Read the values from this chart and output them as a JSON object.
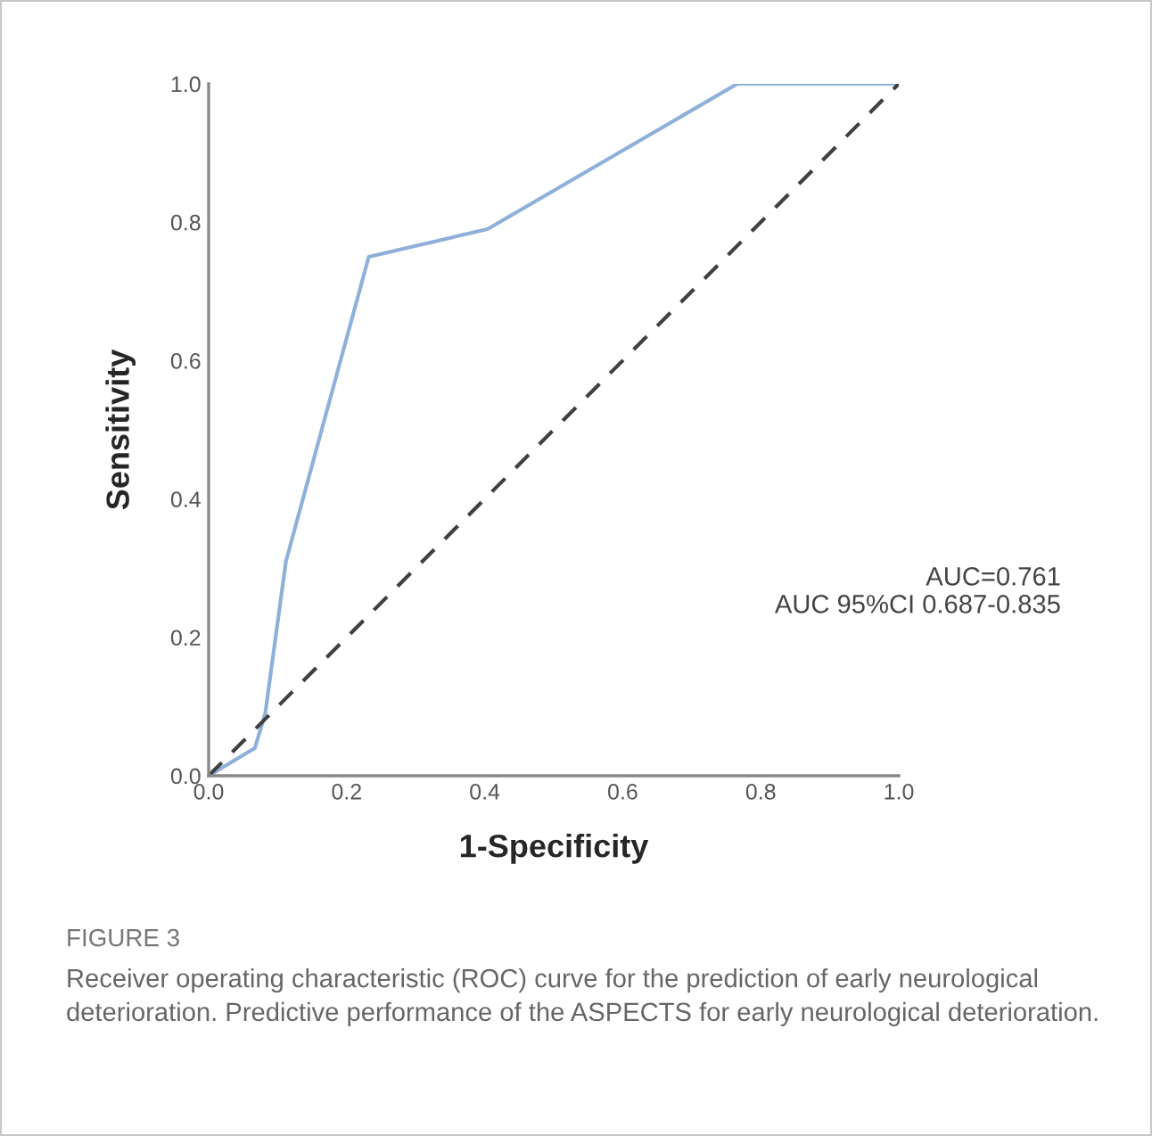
{
  "chart_data": {
    "type": "line",
    "xlabel": "1-Specificity",
    "ylabel": "Sensitivity",
    "series": [
      {
        "x": [
          0,
          0.067,
          0.082,
          0.112,
          0.232,
          0.404,
          0.766,
          1.0
        ],
        "values": [
          0,
          0.04,
          0.09,
          0.31,
          0.75,
          0.79,
          1.0,
          1.0
        ],
        "color": "#8fb0d8",
        "line_style": "solid"
      },
      {
        "x": [
          0,
          1
        ],
        "values": [
          0,
          1
        ],
        "color": "#404040",
        "line_style": "dashed"
      }
    ],
    "xlim": [
      0,
      1
    ],
    "ylim": [
      0,
      1
    ],
    "xticks": [
      {
        "value": 0,
        "label": "0.0"
      },
      0.2,
      0.4,
      0.6,
      0.8,
      {
        "value": 1,
        "label": "1.0"
      }
    ],
    "yticks": [
      {
        "value": 0,
        "label": "0.0"
      },
      0.2,
      0.4,
      0.6,
      0.8,
      {
        "value": 1,
        "label": "1.0"
      }
    ],
    "grid": false,
    "legend": false,
    "marker": "none",
    "annotations": [
      "AUC=0.761",
      "AUC 95%CI 0.687-0.835",
      "FIGURE 3",
      "Receiver operating characteristic (ROC) curve for the prediction of early neurological deterioration. Predictive performance of the ASPECTS for early neurological deterioration."
    ]
  }
}
